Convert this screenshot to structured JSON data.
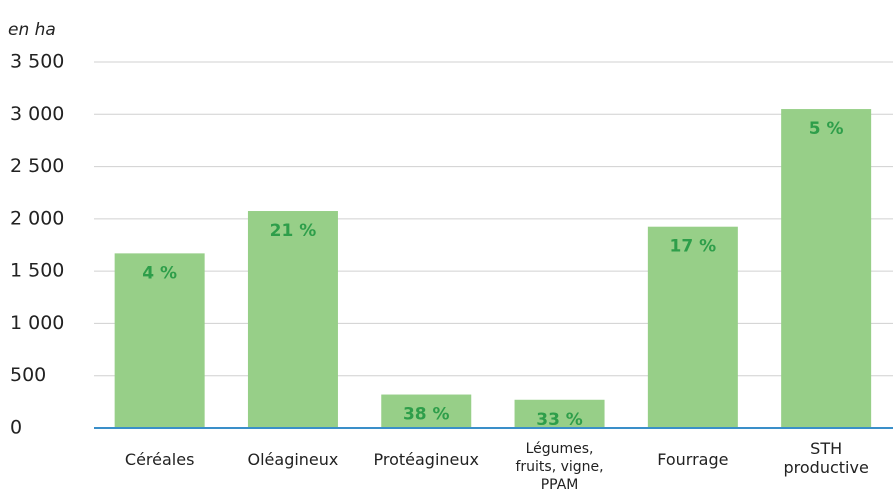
{
  "chart_data": {
    "type": "bar",
    "y_axis_label": "en ha",
    "categories": [
      "Céréales",
      "Oléagineux",
      "Protéagineux",
      "Légumes,\nfruits, vigne,\nPPAM",
      "Fourrage",
      "STH\nproductive"
    ],
    "values": [
      1670,
      2075,
      320,
      270,
      1925,
      3050
    ],
    "annotations": [
      "4 %",
      "21 %",
      "38 %",
      "33 %",
      "17 %",
      "5 %"
    ],
    "color": "#97cf88",
    "annotation_color": "#2e9e4a",
    "ylim": [
      0,
      3500
    ],
    "yticks": [
      0,
      500,
      {
        "value": 1000,
        "label": "1 000"
      },
      {
        "value": 1500,
        "label": "1 500"
      },
      {
        "value": 2000,
        "label": "2 000"
      },
      {
        "value": 2500,
        "label": "2 500"
      },
      {
        "value": 3000,
        "label": "3 000"
      },
      {
        "value": 3500,
        "label": "3 500"
      }
    ],
    "grid": true
  }
}
